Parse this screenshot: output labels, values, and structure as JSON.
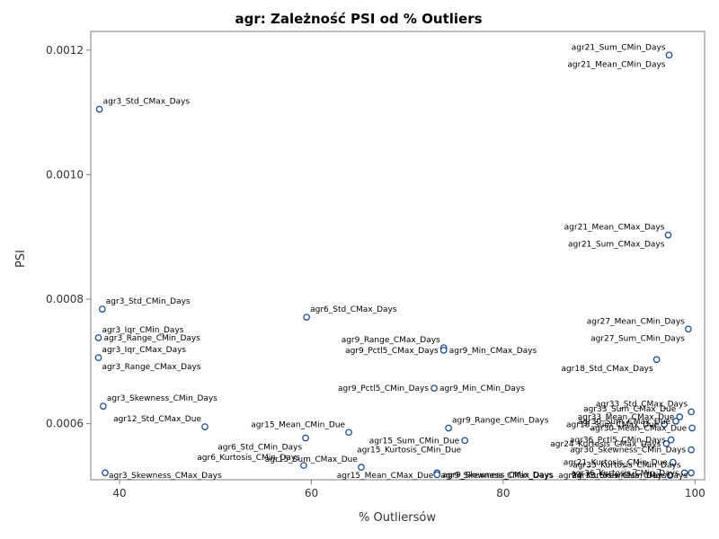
{
  "chart_data": {
    "type": "scatter",
    "title": "agr: Zależność PSI od % Outliers",
    "xlabel": "% Outliersów",
    "ylabel": "PSI",
    "xlim": [
      37,
      101
    ],
    "ylim": [
      0.00051,
      0.00123
    ],
    "xticks": [
      40,
      60,
      80,
      100
    ],
    "yticks": [
      0.0006,
      0.0008,
      0.001,
      0.0012
    ],
    "ytick_labels": [
      "0.0006",
      "0.0008",
      "0.0010",
      "0.0012"
    ],
    "grid": false,
    "marker_color": "#1f4e8c",
    "points": [
      {
        "label": "agr21_Sum_CMin_Days",
        "x": 97.3,
        "y": 0.001192,
        "pos": "left-above"
      },
      {
        "label": "agr21_Mean_CMin_Days",
        "x": 97.3,
        "y": 0.001192,
        "pos": "left-below"
      },
      {
        "label": "agr3_Std_CMax_Days",
        "x": 37.9,
        "y": 0.001105,
        "pos": "right-above"
      },
      {
        "label": "agr21_Mean_CMax_Days",
        "x": 97.2,
        "y": 0.000903,
        "pos": "left-above"
      },
      {
        "label": "agr21_Sum_CMax_Days",
        "x": 97.2,
        "y": 0.000903,
        "pos": "left-below"
      },
      {
        "label": "agr3_Std_CMin_Days",
        "x": 38.2,
        "y": 0.000784,
        "pos": "right-above"
      },
      {
        "label": "agr6_Std_CMax_Days",
        "x": 59.5,
        "y": 0.000771,
        "pos": "right-above"
      },
      {
        "label": "agr27_Mean_CMin_Days",
        "x": 99.3,
        "y": 0.000752,
        "pos": "left-above"
      },
      {
        "label": "agr27_Sum_CMin_Days",
        "x": 99.3,
        "y": 0.000752,
        "pos": "left-below"
      },
      {
        "label": "agr3_Iqr_CMin_Days",
        "x": 37.8,
        "y": 0.000738,
        "pos": "right-above"
      },
      {
        "label": "agr3_Range_CMin_Days",
        "x": 37.8,
        "y": 0.000738,
        "pos": "right"
      },
      {
        "label": "agr9_Range_CMax_Days",
        "x": 73.8,
        "y": 0.000722,
        "pos": "left-above"
      },
      {
        "label": "agr9_Pctl5_CMax_Days",
        "x": 73.8,
        "y": 0.000718,
        "pos": "left"
      },
      {
        "label": "agr9_Min_CMax_Days",
        "x": 73.8,
        "y": 0.000718,
        "pos": "right"
      },
      {
        "label": "agr3_Iqr_CMax_Days",
        "x": 37.8,
        "y": 0.000706,
        "pos": "right-above"
      },
      {
        "label": "agr3_Range_CMax_Days",
        "x": 37.8,
        "y": 0.000706,
        "pos": "right-below"
      },
      {
        "label": "agr18_Std_CMax_Days",
        "x": 96.0,
        "y": 0.000703,
        "pos": "left-below"
      },
      {
        "label": "agr9_Pctl5_CMin_Days",
        "x": 72.8,
        "y": 0.000657,
        "pos": "left"
      },
      {
        "label": "agr9_Min_CMin_Days",
        "x": 72.8,
        "y": 0.000657,
        "pos": "right"
      },
      {
        "label": "agr3_Skewness_CMin_Days",
        "x": 38.3,
        "y": 0.000628,
        "pos": "right-above"
      },
      {
        "label": "agr33_Std_CMax_Days",
        "x": 99.6,
        "y": 0.000619,
        "pos": "left-above"
      },
      {
        "label": "agr33_Sum_CMax_Due",
        "x": 98.4,
        "y": 0.000611,
        "pos": "left-above"
      },
      {
        "label": "agr33_Mean_CMax_Due",
        "x": 98.4,
        "y": 0.000611,
        "pos": "left"
      },
      {
        "label": "agr30_Sum_CMax_Due",
        "x": 98.0,
        "y": 0.000604,
        "pos": "left"
      },
      {
        "label": "agr18_Sum_CMax_Due",
        "x": 96.8,
        "y": 0.000599,
        "pos": "left"
      },
      {
        "label": "agr12_Std_CMax_Due",
        "x": 48.9,
        "y": 0.000595,
        "pos": "left-above"
      },
      {
        "label": "agr15_Mean_CMin_Due",
        "x": 63.9,
        "y": 0.000586,
        "pos": "left-above"
      },
      {
        "label": "agr9_Range_CMin_Days",
        "x": 74.3,
        "y": 0.000593,
        "pos": "right-above"
      },
      {
        "label": "agr30_Mean_CMax_Due",
        "x": 99.7,
        "y": 0.000593,
        "pos": "left"
      },
      {
        "label": "agr36_Pctl5_CMin_Days",
        "x": 97.5,
        "y": 0.000574,
        "pos": "left"
      },
      {
        "label": "agr15_Sum_CMin_Due",
        "x": 76.0,
        "y": 0.000573,
        "pos": "left"
      },
      {
        "label": "agr6_Std_CMin_Days",
        "x": 59.4,
        "y": 0.000577,
        "pos": "left-below"
      },
      {
        "label": "agr24_Kurtosis_CMax_Days",
        "x": 97.0,
        "y": 0.000568,
        "pos": "left"
      },
      {
        "label": "agr15_Kurtosis_CMin_Due",
        "x": 76.0,
        "y": 0.000573,
        "pos": "left-below"
      },
      {
        "label": "agr30_Skewness_CMin_Days",
        "x": 99.6,
        "y": 0.000558,
        "pos": "left"
      },
      {
        "label": "agr6_Kurtosis_CMin_Days",
        "x": 59.2,
        "y": 0.000533,
        "pos": "left-above"
      },
      {
        "label": "agr15_Sum_CMax_Due",
        "x": 65.2,
        "y": 0.00053,
        "pos": "left-above"
      },
      {
        "label": "agr21_Kurtosis_CMin_Due",
        "x": 97.7,
        "y": 0.000538,
        "pos": "left"
      },
      {
        "label": "agr33_Kurtosis_CMin_Days",
        "x": 98.9,
        "y": 0.000521,
        "pos": "left-above"
      },
      {
        "label": "agr36_Kurtosis_CMin_Days",
        "x": 98.9,
        "y": 0.000521,
        "pos": "left"
      },
      {
        "label": "agr3_Skewness_CMax_Days",
        "x": 38.5,
        "y": 0.000521,
        "pos": "right-below"
      },
      {
        "label": "agr15_Mean_CMax_Due",
        "x": 73.1,
        "y": 0.000521,
        "pos": "left-below"
      },
      {
        "label": "agr9_Skewness_CMin_Days",
        "x": 73.1,
        "y": 0.000518,
        "pos": "right"
      },
      {
        "label": "agr9_Skewness_CMax_Days",
        "x": 73.1,
        "y": 0.000518,
        "pos": "right-below"
      },
      {
        "label": "agr24_Kurtosis_CMin_Days",
        "x": 97.4,
        "y": 0.000517,
        "pos": "left-below"
      },
      {
        "label": "agr33_Skewness_CMin_Days",
        "x": 99.6,
        "y": 0.000521,
        "pos": "left-below"
      }
    ]
  }
}
